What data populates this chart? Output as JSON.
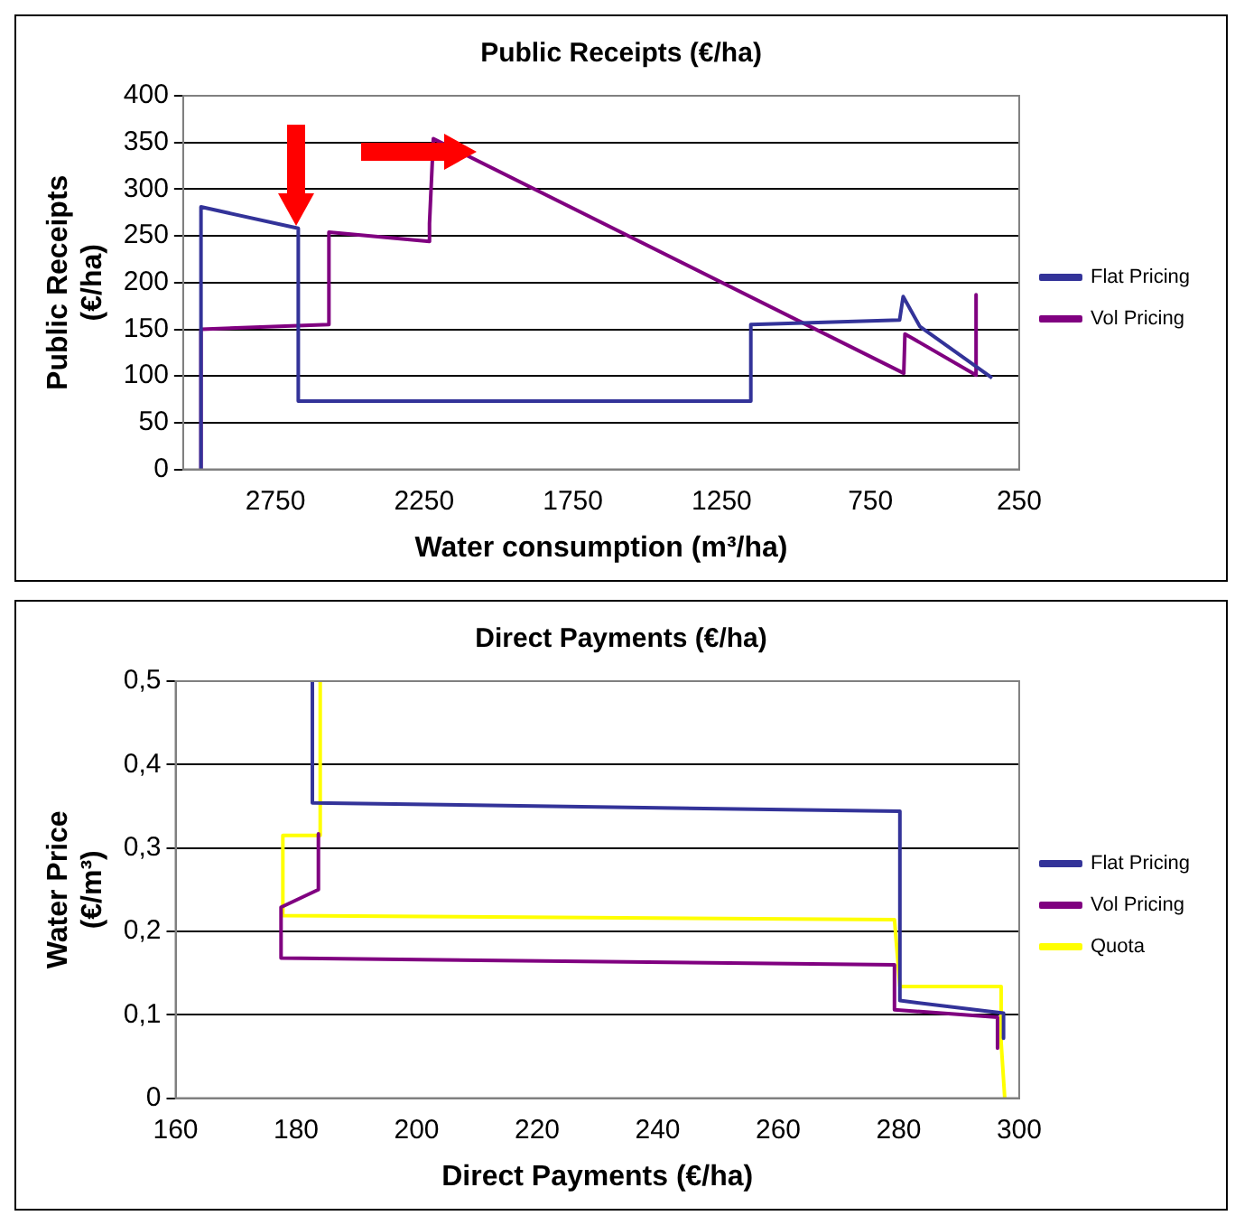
{
  "chart_data": [
    {
      "type": "line",
      "title": "Public Receipts (€/ha)",
      "xlabel": "Water consumption (m³/ha)",
      "ylabel": "Public Receipts (€/ha)",
      "xlim": [
        3060,
        250
      ],
      "xticks": [
        2750,
        2250,
        1750,
        1250,
        750,
        250
      ],
      "ylim": [
        0,
        400
      ],
      "yticks": [
        0,
        50,
        100,
        150,
        200,
        250,
        300,
        350,
        400
      ],
      "grid": "y",
      "legend": "right",
      "marker": "none",
      "series": [
        {
          "name": "Flat Pricing",
          "color": "#333399",
          "x": [
            3000,
            3000,
            2673,
            2673,
            1152,
            1152,
            652,
            640,
            584,
            341
          ],
          "values": [
            0,
            281,
            258,
            73,
            73,
            155,
            160,
            185,
            153,
            98
          ]
        },
        {
          "name": "Vol Pricing",
          "color": "#800080",
          "x": [
            3000,
            3000,
            2570,
            2570,
            2232,
            2232,
            2219,
            638,
            634,
            395,
            395,
            395
          ],
          "values": [
            0,
            150,
            155,
            254,
            244,
            263,
            354,
            103,
            145,
            101,
            187,
            101
          ]
        }
      ]
    },
    {
      "type": "line",
      "title": "Direct Payments (€/ha)",
      "xlabel": "Direct Payments (€/ha)",
      "ylabel": "Water Price (€/m³)",
      "xlim": [
        160,
        300
      ],
      "xticks": [
        160,
        180,
        200,
        220,
        240,
        260,
        280,
        300
      ],
      "ylim": [
        0,
        0.5
      ],
      "yticks": [
        0,
        {
          "value": 0.1,
          "label": "0,1"
        },
        {
          "value": 0.2,
          "label": "0,2"
        },
        {
          "value": 0.3,
          "label": "0,3"
        },
        {
          "value": 0.4,
          "label": "0,4"
        },
        {
          "value": 0.5,
          "label": "0,5"
        }
      ],
      "grid": "y",
      "legend": "right",
      "marker": "none",
      "series": [
        {
          "name": "Flat Pricing",
          "color": "#333399",
          "x": [
            182.7,
            182.7,
            280.2,
            280.2,
            297.4,
            297.4
          ],
          "values": [
            0.5,
            0.354,
            0.344,
            0.117,
            0.102,
            0.072
          ]
        },
        {
          "name": "Vol Pricing",
          "color": "#800080",
          "x": [
            183.7,
            183.7,
            177.5,
            177.5,
            279.3,
            279.3,
            296.4,
            296.4
          ],
          "values": [
            0.317,
            0.25,
            0.229,
            0.168,
            0.16,
            0.106,
            0.097,
            0.06
          ]
        },
        {
          "name": "Quota",
          "color": "#ffff00",
          "x": [
            184,
            184,
            177.8,
            177.8,
            279.3,
            280.2,
            297,
            297,
            297.6
          ],
          "values": [
            0.5,
            0.315,
            0.315,
            0.219,
            0.214,
            0.134,
            0.134,
            0.067,
            0
          ]
        }
      ]
    }
  ]
}
